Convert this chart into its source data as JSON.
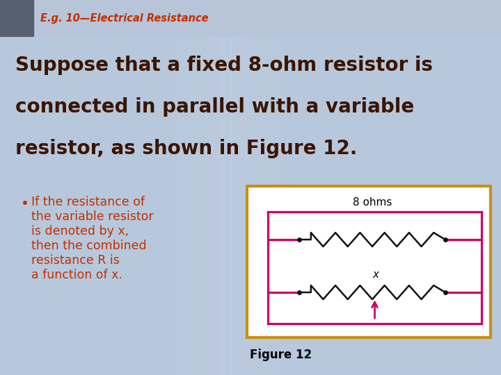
{
  "title": "E.g. 10—Electrical Resistance",
  "title_color": "#C03000",
  "title_fontsize": 10.5,
  "bg_color": "#B8C8DC",
  "header_color": "#B8C4D8",
  "main_text_lines": [
    "Suppose that a fixed 8-ohm resistor is",
    "connected in parallel with a variable",
    "resistor, as shown in Figure 12."
  ],
  "main_text_color": "#3A1500",
  "main_fontsize": 20,
  "bullet_lines": [
    "If the resistance of",
    "the variable resistor",
    "is denoted by x,",
    "then the combined",
    "resistance R is",
    "a function of x."
  ],
  "bullet_fontsize": 12.5,
  "bullet_color": "#C03000",
  "circuit_box_color": "#C89010",
  "circuit_line_color": "#CC0066",
  "resistor_color": "#111111",
  "dot_color": "#111111",
  "figure_label": "Figure 12",
  "label_8ohms": "8 ohms",
  "label_x": "x",
  "logo_color": "#556070"
}
